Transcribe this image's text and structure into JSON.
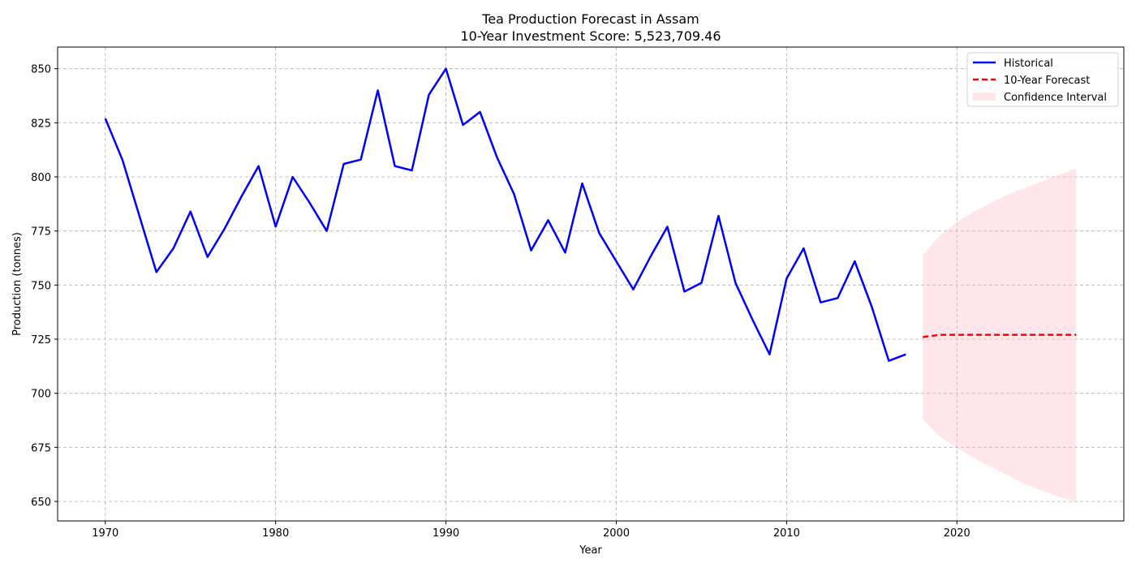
{
  "chart_data": {
    "type": "line",
    "title": "Tea Production Forecast in Assam",
    "subtitle": "10-Year Investment Score: 5,523,709.46",
    "xlabel": "Year",
    "ylabel": "Production (tonnes)",
    "xlim": [
      1967.2,
      2029.8
    ],
    "ylim": [
      641,
      860
    ],
    "xticks": [
      1970,
      1980,
      1990,
      2000,
      2010,
      2020
    ],
    "yticks": [
      650,
      675,
      700,
      725,
      750,
      775,
      800,
      825,
      850
    ],
    "grid": true,
    "legend_position": "top-right",
    "series": [
      {
        "name": "Historical",
        "style": "solid",
        "color": "#0000ff",
        "x": [
          1970,
          1971,
          1972,
          1973,
          1974,
          1975,
          1976,
          1977,
          1978,
          1979,
          1980,
          1981,
          1982,
          1983,
          1984,
          1985,
          1986,
          1987,
          1988,
          1989,
          1990,
          1991,
          1992,
          1993,
          1994,
          1995,
          1996,
          1997,
          1998,
          1999,
          2000,
          2001,
          2002,
          2003,
          2004,
          2005,
          2006,
          2007,
          2008,
          2009,
          2010,
          2011,
          2012,
          2013,
          2014,
          2015,
          2016,
          2017
        ],
        "y": [
          827,
          808,
          782,
          756,
          767,
          784,
          763,
          776,
          791,
          805,
          777,
          800,
          788,
          775,
          806,
          808,
          840,
          805,
          803,
          838,
          850,
          824,
          830,
          809,
          792,
          766,
          780,
          765,
          797,
          774,
          761,
          748,
          763,
          777,
          747,
          751,
          782,
          751,
          734,
          718,
          753,
          767,
          742,
          744,
          761,
          740,
          715,
          718
        ]
      },
      {
        "name": "10-Year Forecast",
        "style": "dashed",
        "color": "#ff0000",
        "x": [
          2018,
          2019,
          2020,
          2021,
          2022,
          2023,
          2024,
          2025,
          2026,
          2027
        ],
        "y": [
          726,
          727,
          727,
          727,
          727,
          727,
          727,
          727,
          727,
          727
        ]
      }
    ],
    "confidence_interval": {
      "name": "Confidence Interval",
      "color": "#ffc0cb",
      "x": [
        2018,
        2019,
        2020,
        2021,
        2022,
        2023,
        2024,
        2025,
        2026,
        2027
      ],
      "lower": [
        688,
        680,
        675,
        670,
        666,
        662,
        658,
        655,
        652,
        650
      ],
      "upper": [
        764,
        773,
        779,
        784,
        788,
        792,
        795,
        798,
        801,
        804
      ]
    }
  }
}
